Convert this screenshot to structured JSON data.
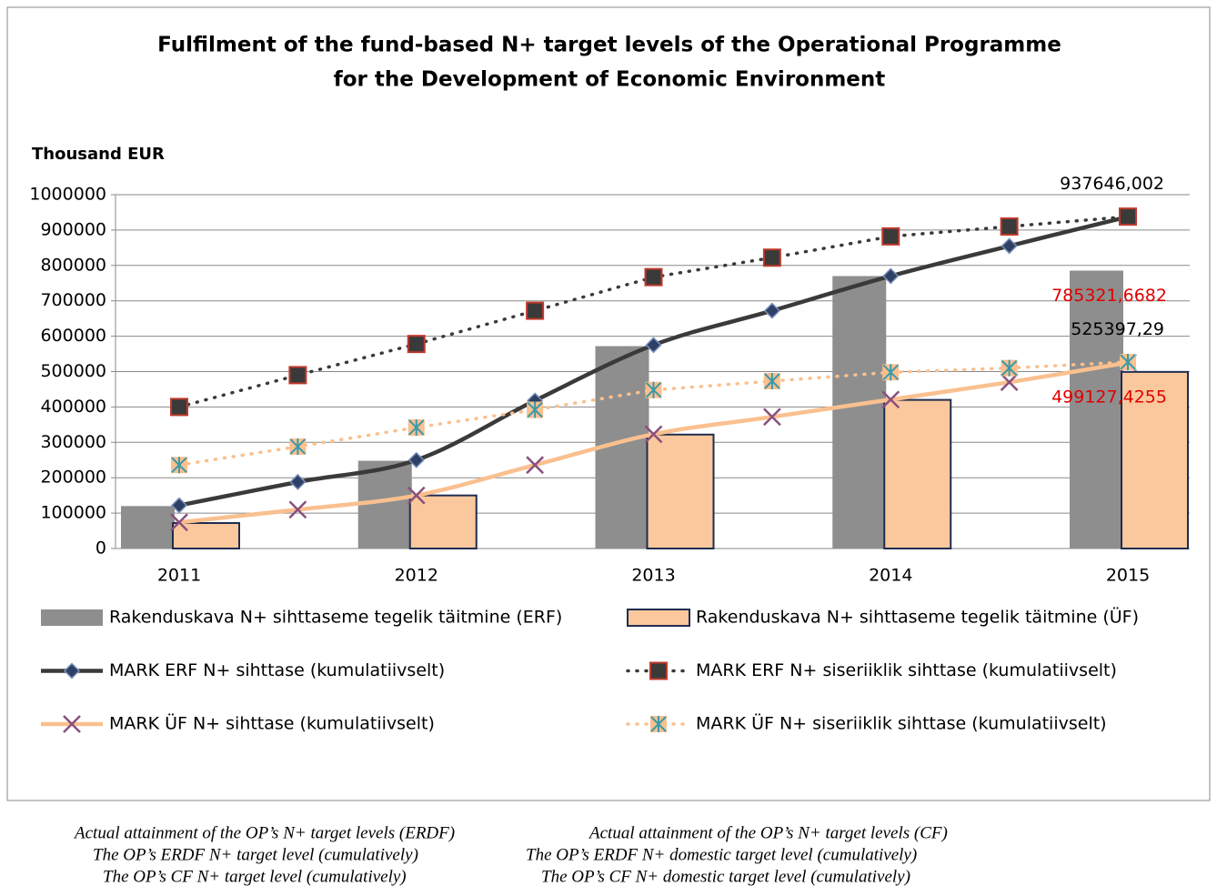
{
  "chart_data": {
    "type": "combo",
    "title": [
      "Fulfilment of the fund-based N+ target levels of the Operational Programme",
      "for the Development of Economic Environment"
    ],
    "y_label": "Thousand EUR",
    "categories": [
      "2011",
      null,
      "2012",
      null,
      "2013",
      null,
      "2014",
      null,
      "2015"
    ],
    "ylim": [
      0,
      1000000
    ],
    "yticks": [
      0,
      100000,
      200000,
      300000,
      400000,
      500000,
      600000,
      700000,
      800000,
      900000,
      1000000
    ],
    "grid": true,
    "series": [
      {
        "name": "Rakenduskava N+ sihttaseme tegelik täitmine (ERF)",
        "kind": "bar",
        "color": "#8e8e8e",
        "values": [
          120000,
          null,
          248000,
          null,
          572000,
          null,
          770000,
          null,
          785321.6682
        ],
        "value_labels": [
          null,
          null,
          null,
          null,
          null,
          null,
          null,
          null,
          "785321,6682"
        ],
        "label_color": "#e00000"
      },
      {
        "name": "Rakenduskava N+ sihttaseme tegelik täitmine (ÜF)",
        "kind": "bar",
        "color": "#fac89c",
        "values": [
          72000,
          null,
          150000,
          null,
          322000,
          null,
          420000,
          null,
          499127.4255
        ],
        "value_labels": [
          null,
          null,
          null,
          null,
          null,
          null,
          null,
          null,
          "499127,4255"
        ],
        "label_color": "#e00000"
      },
      {
        "name": "MARK ERF N+ sihttase (kumulatiivselt)",
        "kind": "line",
        "color": "#3a3a3a",
        "dash": false,
        "marker": "diamond",
        "marker_color": "#2e4066",
        "values": [
          122000,
          188000,
          250000,
          418000,
          575000,
          672000,
          770000,
          855000,
          937646.002
        ],
        "value_labels": [
          null,
          null,
          null,
          null,
          null,
          null,
          null,
          null,
          "937646,002"
        ],
        "label_color": "#000000"
      },
      {
        "name": "MARK ERF N+ siseriiklik sihttase (kumulatiivselt)",
        "kind": "line",
        "color": "#3a3a3a",
        "dash": true,
        "marker": "square",
        "marker_color": "#3a3a3a",
        "values": [
          400000,
          490000,
          578000,
          672000,
          767000,
          822000,
          882000,
          910000,
          938000
        ]
      },
      {
        "name": "MARK ÜF N+ sihttase (kumulatiivselt)",
        "kind": "line",
        "color": "#fac08f",
        "dash": false,
        "marker": "x",
        "marker_color": "#8a4f7d",
        "values": [
          74000,
          110000,
          150000,
          236000,
          323000,
          372000,
          421000,
          470000,
          525397.29
        ],
        "value_labels": [
          null,
          null,
          null,
          null,
          null,
          null,
          null,
          null,
          "525397,29"
        ],
        "label_color": "#000000"
      },
      {
        "name": "MARK ÜF N+ siseriiklik sihttase (kumulatiivselt)",
        "kind": "line",
        "color": "#fac08f",
        "dash": true,
        "marker": "star",
        "marker_color": "#3a9aa8",
        "values": [
          236000,
          288000,
          342000,
          392000,
          448000,
          473000,
          498000,
          510000,
          527000
        ]
      }
    ],
    "caption": [
      [
        "Actual attainment of the OP’s N+ target levels (ERDF)",
        "Actual attainment of the OP’s N+ target levels (CF)"
      ],
      [
        "The OP’s ERDF N+ target level (cumulatively)",
        "The OP’s ERDF N+ domestic target level (cumulatively)"
      ],
      [
        "The OP’s CF N+ target level (cumulatively)",
        "The OP’s CF N+ domestic target level (cumulatively)"
      ]
    ]
  }
}
